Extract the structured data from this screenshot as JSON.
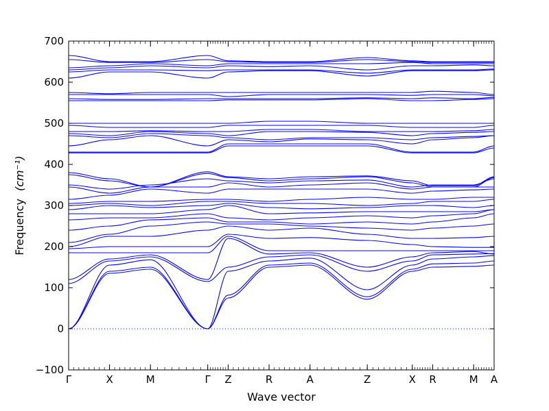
{
  "chart_data": {
    "type": "line",
    "xlabel": "Wave vector",
    "ylabel": "Frequency",
    "ylabel_unit": "(cm⁻¹)",
    "ylim": [
      -100,
      700
    ],
    "yticks": [
      -100,
      0,
      100,
      200,
      300,
      400,
      500,
      600,
      700
    ],
    "grid": false,
    "line_color": "#0000ff",
    "zero_line_color": "#0000ff",
    "high_symmetry_points": [
      {
        "label": "Γ",
        "x": 0.0
      },
      {
        "label": "X",
        "x": 0.5
      },
      {
        "label": "M",
        "x": 1.0
      },
      {
        "label": "Γ",
        "x": 1.7
      },
      {
        "label": "Z",
        "x": 1.95
      },
      {
        "label": "R",
        "x": 2.45
      },
      {
        "label": "A",
        "x": 2.95
      },
      {
        "label": "Z",
        "x": 3.65
      },
      {
        "label": "X",
        "x": 4.2
      },
      {
        "label": "R",
        "x": 4.45
      },
      {
        "label": "M",
        "x": 4.95
      },
      {
        "label": "A",
        "x": 5.2
      }
    ],
    "series": [
      {
        "values": [
          0,
          135,
          145,
          0,
          75,
          150,
          155,
          72,
          140,
          150,
          152,
          155
        ]
      },
      {
        "values": [
          0,
          140,
          150,
          0,
          82,
          155,
          160,
          78,
          145,
          158,
          160,
          165
        ]
      },
      {
        "values": [
          0,
          155,
          168,
          0,
          140,
          165,
          172,
          95,
          155,
          170,
          175,
          178
        ]
      },
      {
        "values": [
          110,
          165,
          175,
          115,
          150,
          175,
          180,
          140,
          165,
          180,
          182,
          183
        ]
      },
      {
        "values": [
          120,
          170,
          180,
          120,
          220,
          182,
          185,
          150,
          175,
          185,
          188,
          182
        ]
      },
      {
        "values": [
          185,
          185,
          185,
          185,
          225,
          190,
          190,
          190,
          190,
          190,
          190,
          190
        ]
      },
      {
        "values": [
          195,
          200,
          200,
          200,
          230,
          220,
          222,
          215,
          205,
          200,
          198,
          198
        ]
      },
      {
        "values": [
          200,
          225,
          225,
          240,
          250,
          240,
          245,
          230,
          220,
          220,
          222,
          225
        ]
      },
      {
        "values": [
          210,
          230,
          250,
          260,
          255,
          255,
          250,
          245,
          240,
          245,
          250,
          255
        ]
      },
      {
        "values": [
          240,
          250,
          265,
          270,
          260,
          260,
          255,
          260,
          255,
          260,
          270,
          280
        ]
      },
      {
        "values": [
          265,
          270,
          270,
          280,
          270,
          265,
          270,
          275,
          270,
          275,
          280,
          290
        ]
      },
      {
        "values": [
          280,
          280,
          280,
          290,
          300,
          280,
          282,
          285,
          285,
          285,
          285,
          290
        ]
      },
      {
        "values": [
          290,
          300,
          295,
          300,
          305,
          295,
          292,
          295,
          300,
          300,
          295,
          300
        ]
      },
      {
        "values": [
          300,
          305,
          300,
          310,
          310,
          305,
          305,
          300,
          305,
          310,
          310,
          315
        ]
      },
      {
        "values": [
          305,
          310,
          310,
          315,
          315,
          310,
          315,
          320,
          315,
          315,
          320,
          320
        ]
      },
      {
        "values": [
          315,
          325,
          340,
          330,
          340,
          340,
          340,
          340,
          330,
          335,
          338,
          340
        ]
      },
      {
        "values": [
          345,
          330,
          345,
          345,
          355,
          345,
          350,
          355,
          340,
          345,
          345,
          345
        ]
      },
      {
        "values": [
          350,
          340,
          350,
          365,
          360,
          355,
          360,
          362,
          345,
          350,
          350,
          365
        ]
      },
      {
        "values": [
          375,
          360,
          345,
          378,
          368,
          360,
          365,
          370,
          355,
          345,
          345,
          368
        ]
      },
      {
        "values": [
          380,
          365,
          345,
          382,
          370,
          365,
          370,
          372,
          360,
          348,
          348,
          370
        ]
      },
      {
        "values": [
          428,
          428,
          428,
          428,
          445,
          445,
          445,
          445,
          428,
          428,
          428,
          440
        ]
      },
      {
        "values": [
          430,
          430,
          430,
          430,
          450,
          450,
          450,
          450,
          430,
          430,
          430,
          445
        ]
      },
      {
        "values": [
          445,
          460,
          470,
          445,
          460,
          455,
          462,
          460,
          450,
          460,
          465,
          470
        ]
      },
      {
        "values": [
          470,
          465,
          475,
          470,
          465,
          460,
          465,
          465,
          460,
          465,
          468,
          470
        ]
      },
      {
        "values": [
          475,
          470,
          480,
          475,
          470,
          480,
          480,
          478,
          470,
          475,
          478,
          480
        ]
      },
      {
        "values": [
          480,
          480,
          482,
          480,
          480,
          485,
          485,
          480,
          480,
          480,
          482,
          485
        ]
      },
      {
        "values": [
          495,
          490,
          490,
          490,
          495,
          495,
          495,
          495,
          490,
          490,
          490,
          495
        ]
      },
      {
        "values": [
          500,
          500,
          500,
          500,
          500,
          505,
          505,
          500,
          500,
          500,
          500,
          500
        ]
      },
      {
        "values": [
          555,
          555,
          555,
          555,
          557,
          557,
          557,
          560,
          555,
          555,
          558,
          560
        ]
      },
      {
        "values": [
          560,
          558,
          558,
          560,
          560,
          560,
          560,
          562,
          560,
          562,
          560,
          563
        ]
      },
      {
        "values": [
          570,
          570,
          570,
          570,
          565,
          570,
          570,
          570,
          568,
          570,
          570,
          567
        ]
      },
      {
        "values": [
          575,
          572,
          575,
          575,
          575,
          575,
          575,
          575,
          575,
          578,
          575,
          570
        ]
      },
      {
        "values": [
          610,
          625,
          625,
          610,
          625,
          628,
          628,
          615,
          628,
          628,
          628,
          630
        ]
      },
      {
        "values": [
          625,
          630,
          630,
          628,
          630,
          630,
          630,
          622,
          630,
          630,
          630,
          632
        ]
      },
      {
        "values": [
          630,
          635,
          640,
          635,
          640,
          638,
          640,
          630,
          640,
          640,
          642,
          640
        ]
      },
      {
        "values": [
          635,
          640,
          645,
          640,
          645,
          645,
          645,
          645,
          648,
          645,
          645,
          645
        ]
      },
      {
        "values": [
          655,
          648,
          648,
          655,
          650,
          648,
          648,
          655,
          650,
          648,
          648,
          648
        ]
      },
      {
        "values": [
          665,
          650,
          650,
          665,
          652,
          650,
          650,
          660,
          652,
          650,
          650,
          650
        ]
      }
    ]
  }
}
